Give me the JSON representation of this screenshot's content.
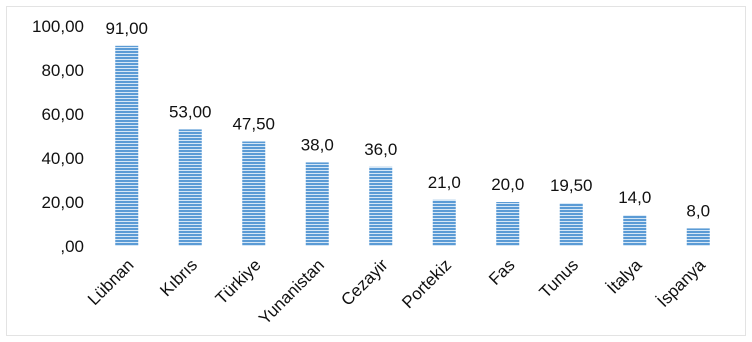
{
  "chart_data": {
    "type": "bar",
    "categories": [
      "Lübnan",
      "Kıbrıs",
      "Türkiye",
      "Yunanistan",
      "Cezayir",
      "Portekiz",
      "Fas",
      "Tunus",
      "İtalya",
      "İspanya"
    ],
    "values": [
      91.0,
      53.0,
      47.5,
      38.0,
      36.0,
      21.0,
      20.0,
      19.5,
      14.0,
      8.0
    ],
    "data_labels": [
      "91,00",
      "53,00",
      "47,50",
      "38,0",
      "36,0",
      "21,0",
      "20,0",
      "19,50",
      "14,0",
      "8,0"
    ],
    "yticks": [
      0,
      20,
      40,
      60,
      80,
      100
    ],
    "ytick_labels": [
      ",00",
      "20,00",
      "40,00",
      "60,00",
      "80,00",
      "100,00"
    ],
    "ylim": [
      0,
      100
    ],
    "grid": false,
    "colors": {
      "bar": "#5b9bd5",
      "bar_stripe": "#cfe2f3",
      "text": "#111111"
    }
  }
}
